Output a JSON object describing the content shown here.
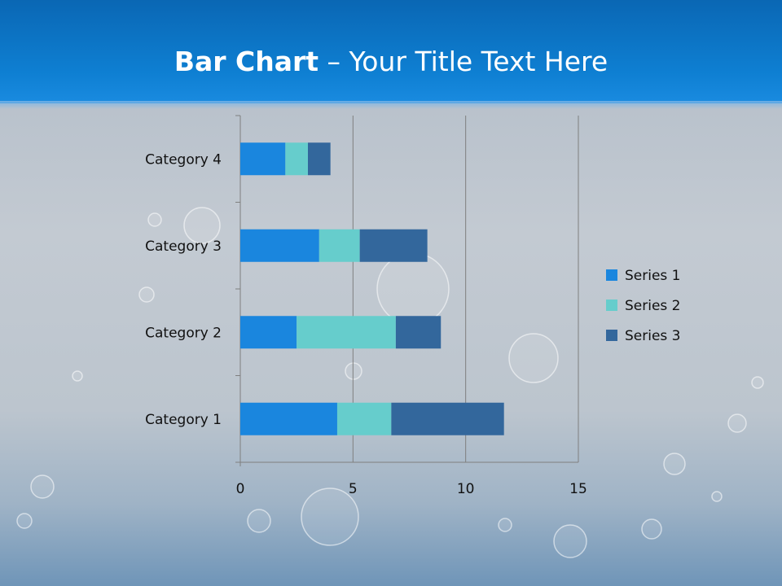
{
  "slide": {
    "title_bold": "Bar Chart",
    "title_dash": " – ",
    "title_rest": "Your Title Text Here"
  },
  "colors": {
    "header": "#0e7fd2",
    "series": [
      "#1a86de",
      "#66cdcc",
      "#33679c"
    ],
    "gridline": "#7f7f7f",
    "text": "#111111"
  },
  "chart_data": {
    "type": "bar",
    "orientation": "horizontal",
    "stacked": true,
    "categories": [
      "Category 1",
      "Category 2",
      "Category 3",
      "Category 4"
    ],
    "series": [
      {
        "name": "Series 1",
        "values": [
          4.3,
          2.5,
          3.5,
          2.0
        ]
      },
      {
        "name": "Series 2",
        "values": [
          2.4,
          4.4,
          1.8,
          1.0
        ]
      },
      {
        "name": "Series 3",
        "values": [
          5.0,
          2.0,
          3.0,
          1.0
        ]
      }
    ],
    "xlim": [
      0,
      15
    ],
    "xticks": [
      0,
      5,
      10,
      15
    ],
    "grid": true,
    "legend": "right"
  }
}
